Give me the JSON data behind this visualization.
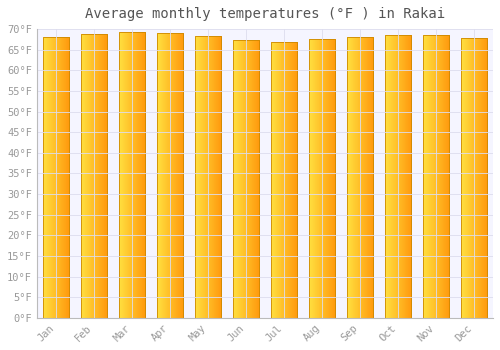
{
  "title": "Average monthly temperatures (°F ) in Rakai",
  "months": [
    "Jan",
    "Feb",
    "Mar",
    "Apr",
    "May",
    "Jun",
    "Jul",
    "Aug",
    "Sep",
    "Oct",
    "Nov",
    "Dec"
  ],
  "values": [
    68.0,
    68.9,
    69.3,
    69.1,
    68.2,
    67.3,
    66.9,
    67.5,
    68.0,
    68.5,
    68.5,
    67.8
  ],
  "bar_color_left": "#FFE060",
  "bar_color_right": "#FFA500",
  "bar_edge_color": "#CC8800",
  "background_color": "#FFFFFF",
  "plot_bg_color": "#F5F5FF",
  "grid_color": "#DDDDEE",
  "ylim": [
    0,
    70
  ],
  "yticks": [
    0,
    5,
    10,
    15,
    20,
    25,
    30,
    35,
    40,
    45,
    50,
    55,
    60,
    65,
    70
  ],
  "title_fontsize": 10,
  "tick_fontsize": 7.5,
  "tick_color": "#999999",
  "title_color": "#555555",
  "bar_width": 0.7
}
